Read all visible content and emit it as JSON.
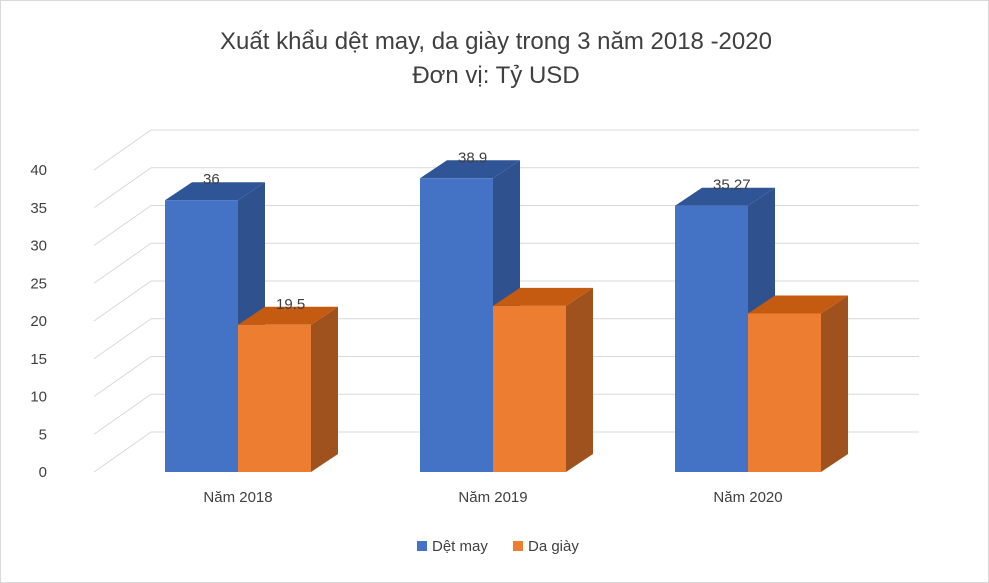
{
  "chart_data": {
    "type": "bar",
    "title": "Xuất khẩu dệt may, da giày trong 3 năm 2018 -2020",
    "subtitle": "Đơn vị: Tỷ USD",
    "categories": [
      "Năm 2018",
      "Năm 2019",
      "Năm 2020"
    ],
    "series": [
      {
        "name": "Dệt may",
        "values": [
          36,
          38.9,
          35.27
        ],
        "labels": [
          "36",
          "38.9",
          "35.27"
        ],
        "color": "#4472C4",
        "side_color": "#2F528F",
        "top_color": "#2F5597"
      },
      {
        "name": "Da giày",
        "values": [
          19.5,
          22,
          21
        ],
        "labels": [
          "19.5",
          "",
          ""
        ],
        "color": "#ED7D31",
        "side_color": "#A0521E",
        "top_color": "#C55A11"
      }
    ],
    "y_ticks": [
      "0",
      "5",
      "10",
      "15",
      "20",
      "25",
      "30",
      "35",
      "40"
    ],
    "ylim": [
      0,
      40
    ],
    "grid": true,
    "legend_position": "bottom",
    "three_d": true
  }
}
